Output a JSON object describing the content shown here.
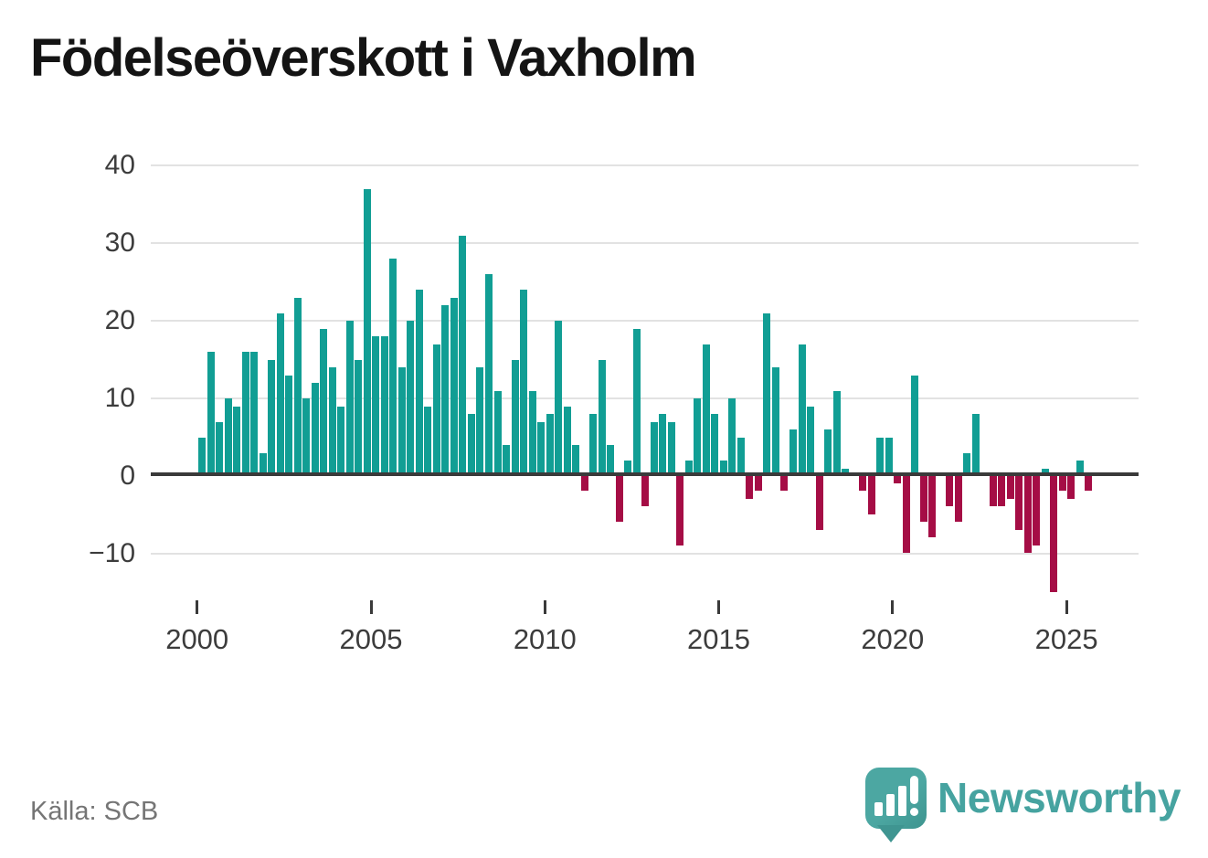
{
  "header": {
    "title": "Födelseöverskott i Vaxholm"
  },
  "chart_data": {
    "type": "bar",
    "title": "Födelseöverskott i Vaxholm",
    "series_name": "Födelseöverskott",
    "frequency": "quarterly",
    "x_start": "2000Q1",
    "x_end": "2025Q3",
    "x": [
      "2000Q1",
      "2000Q2",
      "2000Q3",
      "2000Q4",
      "2001Q1",
      "2001Q2",
      "2001Q3",
      "2001Q4",
      "2002Q1",
      "2002Q2",
      "2002Q3",
      "2002Q4",
      "2003Q1",
      "2003Q2",
      "2003Q3",
      "2003Q4",
      "2004Q1",
      "2004Q2",
      "2004Q3",
      "2004Q4",
      "2005Q1",
      "2005Q2",
      "2005Q3",
      "2005Q4",
      "2006Q1",
      "2006Q2",
      "2006Q3",
      "2006Q4",
      "2007Q1",
      "2007Q2",
      "2007Q3",
      "2007Q4",
      "2008Q1",
      "2008Q2",
      "2008Q3",
      "2008Q4",
      "2009Q1",
      "2009Q2",
      "2009Q3",
      "2009Q4",
      "2010Q1",
      "2010Q2",
      "2010Q3",
      "2010Q4",
      "2011Q1",
      "2011Q2",
      "2011Q3",
      "2011Q4",
      "2012Q1",
      "2012Q2",
      "2012Q3",
      "2012Q4",
      "2013Q1",
      "2013Q2",
      "2013Q3",
      "2013Q4",
      "2014Q1",
      "2014Q2",
      "2014Q3",
      "2014Q4",
      "2015Q1",
      "2015Q2",
      "2015Q3",
      "2015Q4",
      "2016Q1",
      "2016Q2",
      "2016Q3",
      "2016Q4",
      "2017Q1",
      "2017Q2",
      "2017Q3",
      "2017Q4",
      "2018Q1",
      "2018Q2",
      "2018Q3",
      "2018Q4",
      "2019Q1",
      "2019Q2",
      "2019Q3",
      "2019Q4",
      "2020Q1",
      "2020Q2",
      "2020Q3",
      "2020Q4",
      "2021Q1",
      "2021Q2",
      "2021Q3",
      "2021Q4",
      "2022Q1",
      "2022Q2",
      "2022Q3",
      "2022Q4",
      "2023Q1",
      "2023Q2",
      "2023Q3",
      "2023Q4",
      "2024Q1",
      "2024Q2",
      "2024Q3",
      "2024Q4",
      "2025Q1",
      "2025Q2",
      "2025Q3"
    ],
    "values": [
      5,
      16,
      7,
      10,
      9,
      16,
      16,
      3,
      15,
      21,
      13,
      23,
      10,
      12,
      19,
      14,
      9,
      20,
      15,
      37,
      18,
      18,
      28,
      14,
      20,
      24,
      9,
      17,
      22,
      23,
      31,
      8,
      14,
      26,
      11,
      4,
      15,
      24,
      11,
      7,
      8,
      20,
      9,
      4,
      -2,
      8,
      15,
      4,
      -6,
      2,
      19,
      -4,
      7,
      8,
      7,
      -9,
      2,
      10,
      17,
      8,
      2,
      10,
      5,
      -3,
      -2,
      21,
      14,
      -2,
      6,
      17,
      9,
      -7,
      6,
      11,
      1,
      0,
      -2,
      -5,
      5,
      5,
      -1,
      -10,
      13,
      -6,
      -8,
      0,
      -4,
      -6,
      3,
      8,
      0,
      -4,
      -4,
      -3,
      -7,
      -10,
      -9,
      1,
      -15,
      -2,
      -3,
      2,
      -2
    ],
    "y_ticks": [
      40,
      30,
      20,
      10,
      0,
      -10
    ],
    "x_tick_labels": [
      "2000",
      "2005",
      "2010",
      "2015",
      "2020",
      "2025"
    ],
    "x_tick_positions": [
      0,
      20,
      40,
      60,
      80,
      100
    ],
    "ylim": [
      -16,
      42
    ],
    "grid": true,
    "legend": "none",
    "positive_color": "#119e94",
    "negative_color": "#a50d45",
    "axis_color": "#3a3a3a",
    "gridline_color": "#e2e2e2",
    "tick_label_color": "#3c3c3c"
  },
  "footer": {
    "source": "Källa: SCB",
    "brand": "Newsworthy"
  },
  "colors": {
    "brand_teal": "#46a3a0",
    "title_color": "#141414",
    "source_color": "#757575"
  }
}
